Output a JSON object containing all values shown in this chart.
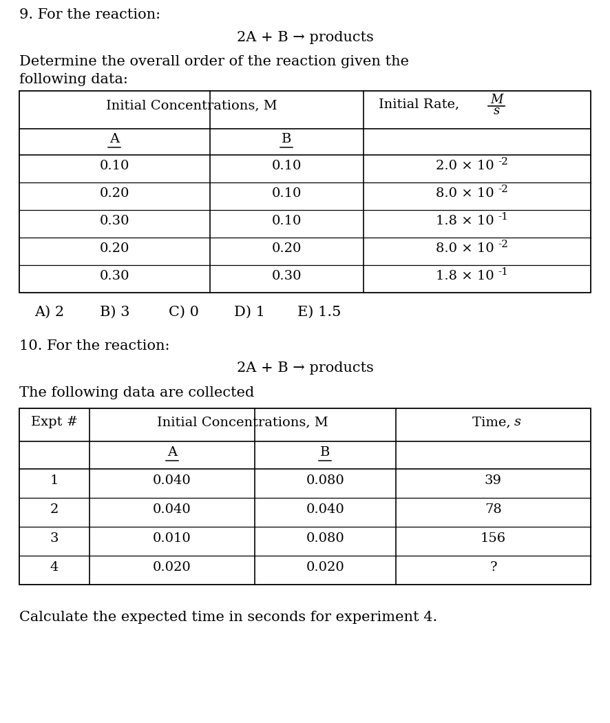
{
  "background_color": "#ffffff",
  "text_color": "#000000",
  "q9_label": "9. For the reaction:",
  "q9_reaction": "2A + B → products",
  "q9_desc_line1": "Determine the overall order of the reaction given the",
  "q9_desc_line2": "following data:",
  "q9_rows": [
    [
      "0.10",
      "0.10",
      "2.0",
      "-2"
    ],
    [
      "0.20",
      "0.10",
      "8.0",
      "-2"
    ],
    [
      "0.30",
      "0.10",
      "1.8",
      "-1"
    ],
    [
      "0.20",
      "0.20",
      "8.0",
      "-2"
    ],
    [
      "0.30",
      "0.30",
      "1.8",
      "-1"
    ]
  ],
  "q9_choices": [
    "A) 2",
    "B) 3",
    "C) 0",
    "D) 1",
    "E) 1.5"
  ],
  "q10_label": "10. For the reaction:",
  "q10_reaction": "2A + B → products",
  "q10_desc": "The following data are collected",
  "q10_rows": [
    [
      "1",
      "0.040",
      "0.080",
      "39"
    ],
    [
      "2",
      "0.040",
      "0.040",
      "78"
    ],
    [
      "3",
      "0.010",
      "0.080",
      "156"
    ],
    [
      "4",
      "0.020",
      "0.020",
      "?"
    ]
  ],
  "q10_footer": "Calculate the expected time in seconds for experiment 4.",
  "fontsize_body": 15,
  "fontsize_table": 14,
  "fontsize_small": 11
}
